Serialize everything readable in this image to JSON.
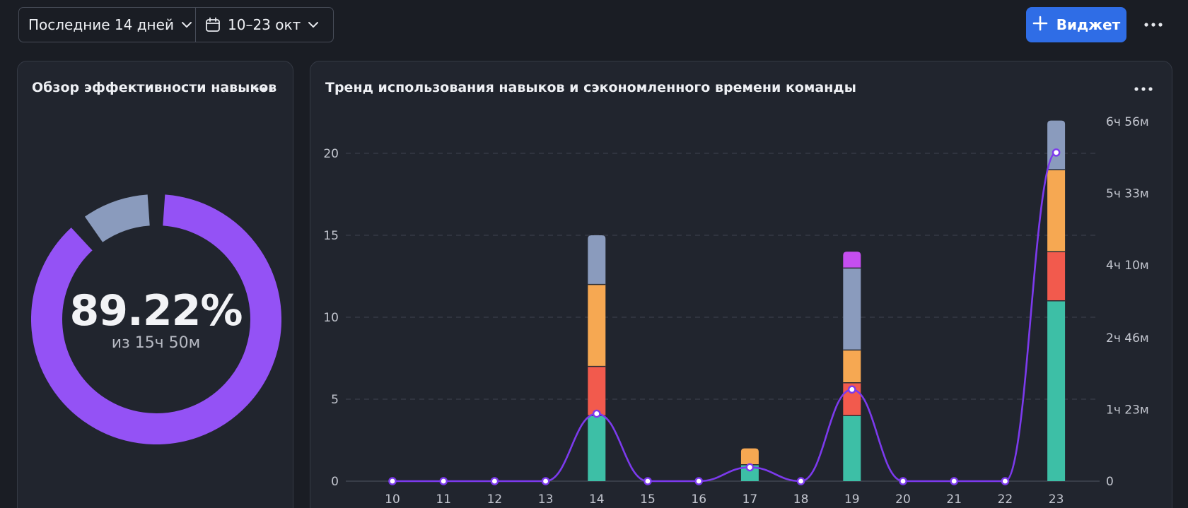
{
  "toolbar": {
    "range_label": "Последние 14 дней",
    "date_label": "10–23 окт",
    "add_label": "Виджет"
  },
  "icons": {
    "range_dropdown": "chevron-down-icon",
    "calendar": "calendar-icon",
    "date_dropdown": "chevron-down-icon",
    "add": "plus-icon",
    "more": "more-horizontal-icon"
  },
  "colors": {
    "accent": "#2f6de6",
    "donut_main": "#9452f5",
    "donut_rest": "#8a9bbd",
    "line": "#7c3aed",
    "teal": "#3dbfa6",
    "red": "#f25a4d",
    "orange": "#f6a852",
    "slate": "#8a9bbd",
    "violet": "#c54ef0"
  },
  "performance": {
    "title": "Обзор эффективности навыков",
    "percent": "89.22%",
    "caption": "из 15ч 50м",
    "fraction": 0.8922
  },
  "trend": {
    "title": "Тренд использования навыков и сэкономленного времени команды"
  },
  "chart_data": {
    "type": "bar",
    "stacked": true,
    "categories": [
      "10",
      "11",
      "12",
      "13",
      "14",
      "15",
      "16",
      "17",
      "18",
      "19",
      "20",
      "21",
      "22",
      "23"
    ],
    "series": [
      {
        "color": "#3dbfa6",
        "values": [
          0,
          0,
          0,
          0,
          4,
          0,
          0,
          1,
          0,
          4,
          0,
          0,
          0,
          11
        ]
      },
      {
        "color": "#f25a4d",
        "values": [
          0,
          0,
          0,
          0,
          3,
          0,
          0,
          0,
          0,
          2,
          0,
          0,
          0,
          3
        ]
      },
      {
        "color": "#f6a852",
        "values": [
          0,
          0,
          0,
          0,
          5,
          0,
          0,
          1,
          0,
          2,
          0,
          0,
          0,
          5
        ]
      },
      {
        "color": "#8a9bbd",
        "values": [
          0,
          0,
          0,
          0,
          3,
          0,
          0,
          0,
          0,
          5,
          0,
          0,
          0,
          3
        ]
      },
      {
        "color": "#c54ef0",
        "values": [
          0,
          0,
          0,
          0,
          0,
          0,
          0,
          0,
          0,
          1,
          0,
          0,
          0,
          0
        ]
      }
    ],
    "line": {
      "color": "#7c3aed",
      "axis": "right",
      "values_min": [
        0,
        0,
        0,
        0,
        78,
        0,
        0,
        16,
        0,
        106,
        0,
        0,
        0,
        380
      ]
    },
    "y_left": {
      "min": 0,
      "max": 22,
      "ticks": [
        "0",
        "5",
        "10",
        "15",
        "20"
      ]
    },
    "y_right": {
      "min": 0,
      "max": 417,
      "ticks": [
        "0",
        "1ч 23м",
        "2ч 46м",
        "4ч 10м",
        "5ч 33м",
        "6ч 56м"
      ]
    },
    "grid": true,
    "legend": "none"
  }
}
